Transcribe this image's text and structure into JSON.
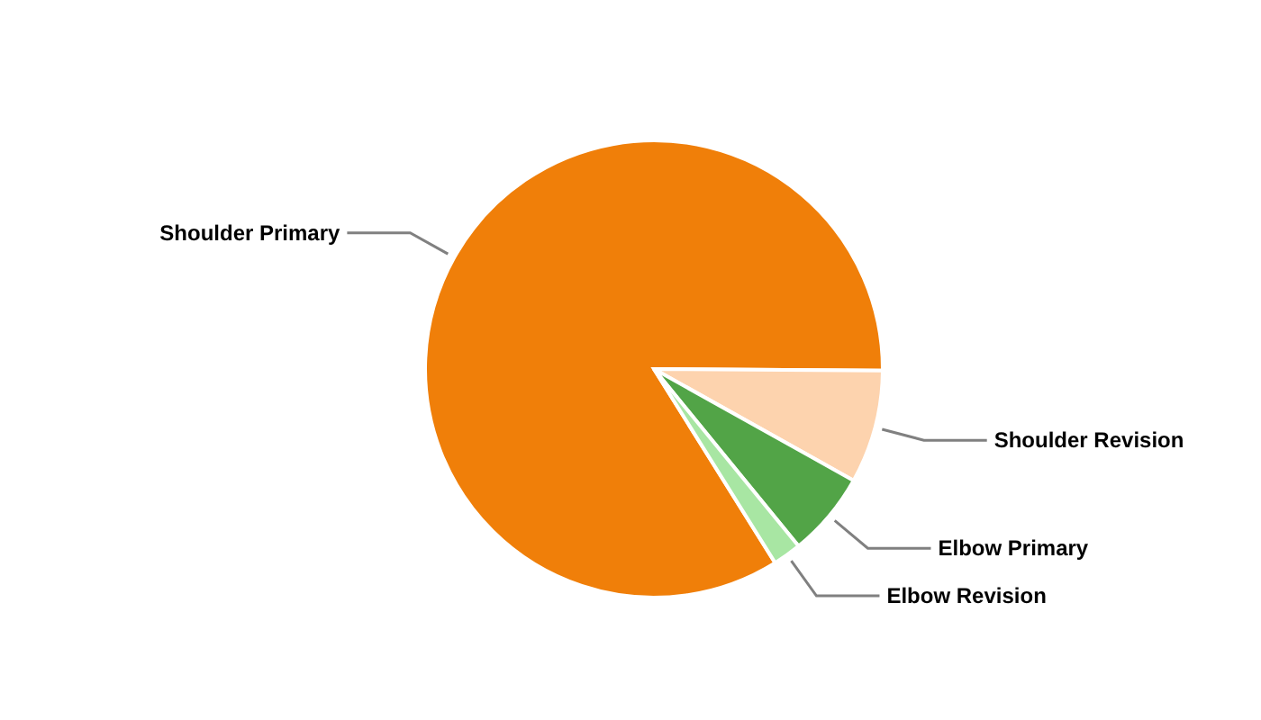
{
  "chart_data": {
    "type": "pie",
    "categories": [
      "Shoulder Primary",
      "Shoulder Revision",
      "Elbow Primary",
      "Elbow Revision"
    ],
    "values": [
      84,
      8,
      6,
      2
    ],
    "colors": [
      "#f07f09",
      "#fdd3ae",
      "#52a447",
      "#a8e6a3"
    ]
  }
}
